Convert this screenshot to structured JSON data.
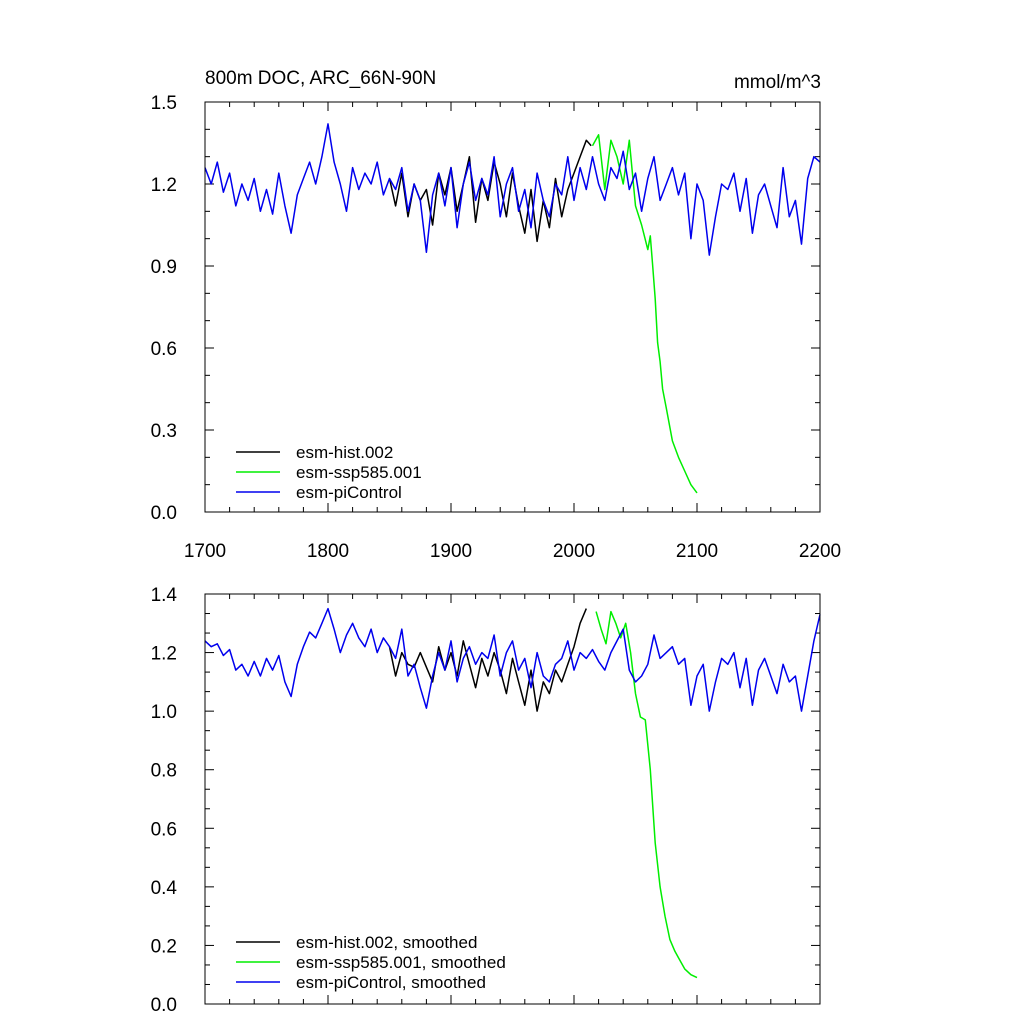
{
  "chart_data": [
    {
      "type": "line",
      "title": "800m DOC, ARC_66N-90N",
      "units": "mmol/m^3",
      "xlabel": "",
      "ylabel": "",
      "xlim": [
        1700,
        2200
      ],
      "ylim": [
        0.0,
        1.5
      ],
      "xticks": [
        1700,
        1800,
        1900,
        2000,
        2100,
        2200
      ],
      "xtick_labels": [
        "1700",
        "1800",
        "1900",
        "2000",
        "2100",
        "2200"
      ],
      "yticks": [
        0.0,
        0.3,
        0.6,
        0.9,
        1.2,
        1.5
      ],
      "ytick_labels": [
        "0.0",
        "0.3",
        "0.6",
        "0.9",
        "1.2",
        "1.5"
      ],
      "grid": false,
      "legend_position": "bottom-left",
      "series": [
        {
          "name": "esm-hist.002",
          "color": "#000000",
          "x": [
            1850,
            1855,
            1860,
            1865,
            1870,
            1875,
            1880,
            1885,
            1890,
            1895,
            1900,
            1905,
            1910,
            1915,
            1920,
            1925,
            1930,
            1935,
            1940,
            1945,
            1950,
            1955,
            1960,
            1965,
            1970,
            1975,
            1980,
            1985,
            1990,
            1995,
            2000,
            2005,
            2010,
            2014
          ],
          "y": [
            1.22,
            1.12,
            1.24,
            1.08,
            1.2,
            1.14,
            1.18,
            1.05,
            1.24,
            1.16,
            1.26,
            1.1,
            1.2,
            1.3,
            1.06,
            1.22,
            1.14,
            1.28,
            1.2,
            1.08,
            1.24,
            1.12,
            1.02,
            1.18,
            0.99,
            1.14,
            1.04,
            1.22,
            1.08,
            1.18,
            1.24,
            1.3,
            1.36,
            1.34
          ]
        },
        {
          "name": "esm-ssp585.001",
          "color": "#00ee00",
          "x": [
            2015,
            2020,
            2025,
            2030,
            2035,
            2040,
            2045,
            2050,
            2055,
            2060,
            2062,
            2064,
            2066,
            2068,
            2070,
            2072,
            2075,
            2080,
            2085,
            2090,
            2095,
            2100
          ],
          "y": [
            1.34,
            1.38,
            1.18,
            1.36,
            1.3,
            1.2,
            1.36,
            1.12,
            1.05,
            0.96,
            1.01,
            0.9,
            0.78,
            0.62,
            0.55,
            0.45,
            0.38,
            0.26,
            0.2,
            0.15,
            0.1,
            0.07
          ]
        },
        {
          "name": "esm-piControl",
          "color": "#0000ee",
          "x": [
            1700,
            1705,
            1710,
            1715,
            1720,
            1725,
            1730,
            1735,
            1740,
            1745,
            1750,
            1755,
            1760,
            1765,
            1770,
            1775,
            1780,
            1785,
            1790,
            1795,
            1800,
            1805,
            1810,
            1815,
            1820,
            1825,
            1830,
            1835,
            1840,
            1845,
            1850,
            1855,
            1860,
            1865,
            1870,
            1875,
            1880,
            1885,
            1890,
            1895,
            1900,
            1905,
            1910,
            1915,
            1920,
            1925,
            1930,
            1935,
            1940,
            1945,
            1950,
            1955,
            1960,
            1965,
            1970,
            1975,
            1980,
            1985,
            1990,
            1995,
            2000,
            2005,
            2010,
            2015,
            2020,
            2025,
            2030,
            2035,
            2040,
            2045,
            2050,
            2055,
            2060,
            2065,
            2070,
            2075,
            2080,
            2085,
            2090,
            2095,
            2100,
            2105,
            2110,
            2115,
            2120,
            2125,
            2130,
            2135,
            2140,
            2145,
            2150,
            2155,
            2160,
            2165,
            2170,
            2175,
            2180,
            2185,
            2190,
            2195,
            2200
          ],
          "y": [
            1.26,
            1.2,
            1.28,
            1.17,
            1.24,
            1.12,
            1.2,
            1.14,
            1.22,
            1.1,
            1.18,
            1.09,
            1.24,
            1.12,
            1.02,
            1.16,
            1.22,
            1.28,
            1.2,
            1.3,
            1.42,
            1.28,
            1.2,
            1.1,
            1.26,
            1.18,
            1.24,
            1.2,
            1.28,
            1.16,
            1.22,
            1.18,
            1.26,
            1.1,
            1.2,
            1.14,
            0.95,
            1.16,
            1.24,
            1.12,
            1.26,
            1.04,
            1.2,
            1.28,
            1.14,
            1.22,
            1.16,
            1.3,
            1.08,
            1.2,
            1.26,
            1.1,
            1.18,
            1.04,
            1.24,
            1.14,
            1.08,
            1.2,
            1.16,
            1.3,
            1.14,
            1.26,
            1.18,
            1.3,
            1.2,
            1.14,
            1.26,
            1.22,
            1.32,
            1.18,
            1.24,
            1.1,
            1.22,
            1.3,
            1.14,
            1.2,
            1.26,
            1.16,
            1.24,
            1.0,
            1.2,
            1.14,
            0.94,
            1.08,
            1.2,
            1.18,
            1.24,
            1.1,
            1.22,
            1.02,
            1.16,
            1.2,
            1.12,
            1.04,
            1.26,
            1.08,
            1.14,
            0.98,
            1.22,
            1.3,
            1.28
          ]
        }
      ]
    },
    {
      "type": "line",
      "title": "",
      "xlabel": "",
      "ylabel": "",
      "xlim": [
        1700,
        2200
      ],
      "ylim": [
        0.0,
        1.4
      ],
      "xticks": [
        1700,
        1800,
        1900,
        2000,
        2100,
        2200
      ],
      "yticks": [
        0.0,
        0.2,
        0.4,
        0.6,
        0.8,
        1.0,
        1.2,
        1.4
      ],
      "ytick_labels": [
        "0.0",
        "0.2",
        "0.4",
        "0.6",
        "0.8",
        "1.0",
        "1.2",
        "1.4"
      ],
      "grid": false,
      "legend_position": "bottom-left",
      "series": [
        {
          "name": "esm-hist.002, smoothed",
          "color": "#000000",
          "x": [
            1850,
            1855,
            1860,
            1865,
            1870,
            1875,
            1880,
            1885,
            1890,
            1895,
            1900,
            1905,
            1910,
            1915,
            1920,
            1925,
            1930,
            1935,
            1940,
            1945,
            1950,
            1955,
            1960,
            1965,
            1970,
            1975,
            1980,
            1985,
            1990,
            1995,
            2000,
            2005,
            2010
          ],
          "y": [
            1.22,
            1.12,
            1.2,
            1.16,
            1.15,
            1.2,
            1.15,
            1.1,
            1.22,
            1.14,
            1.2,
            1.12,
            1.24,
            1.16,
            1.08,
            1.18,
            1.12,
            1.2,
            1.14,
            1.06,
            1.18,
            1.1,
            1.02,
            1.14,
            1.0,
            1.1,
            1.06,
            1.14,
            1.1,
            1.16,
            1.22,
            1.3,
            1.35
          ]
        },
        {
          "name": "esm-ssp585.001, smoothed",
          "color": "#00ee00",
          "x": [
            2018,
            2022,
            2026,
            2030,
            2034,
            2038,
            2042,
            2046,
            2050,
            2054,
            2058,
            2062,
            2066,
            2070,
            2074,
            2078,
            2082,
            2086,
            2090,
            2095,
            2100
          ],
          "y": [
            1.34,
            1.28,
            1.23,
            1.34,
            1.3,
            1.25,
            1.3,
            1.2,
            1.06,
            0.98,
            0.97,
            0.8,
            0.55,
            0.4,
            0.3,
            0.22,
            0.18,
            0.15,
            0.12,
            0.1,
            0.09
          ]
        },
        {
          "name": "esm-piControl, smoothed",
          "color": "#0000ee",
          "x": [
            1700,
            1705,
            1710,
            1715,
            1720,
            1725,
            1730,
            1735,
            1740,
            1745,
            1750,
            1755,
            1760,
            1765,
            1770,
            1775,
            1780,
            1785,
            1790,
            1795,
            1800,
            1805,
            1810,
            1815,
            1820,
            1825,
            1830,
            1835,
            1840,
            1845,
            1850,
            1855,
            1860,
            1865,
            1870,
            1875,
            1880,
            1885,
            1890,
            1895,
            1900,
            1905,
            1910,
            1915,
            1920,
            1925,
            1930,
            1935,
            1940,
            1945,
            1950,
            1955,
            1960,
            1965,
            1970,
            1975,
            1980,
            1985,
            1990,
            1995,
            2000,
            2005,
            2010,
            2015,
            2020,
            2025,
            2030,
            2035,
            2040,
            2045,
            2050,
            2055,
            2060,
            2065,
            2070,
            2075,
            2080,
            2085,
            2090,
            2095,
            2100,
            2105,
            2110,
            2115,
            2120,
            2125,
            2130,
            2135,
            2140,
            2145,
            2150,
            2155,
            2160,
            2165,
            2170,
            2175,
            2180,
            2185,
            2190,
            2195,
            2200
          ],
          "y": [
            1.24,
            1.22,
            1.23,
            1.19,
            1.21,
            1.14,
            1.16,
            1.12,
            1.17,
            1.12,
            1.18,
            1.14,
            1.19,
            1.1,
            1.05,
            1.16,
            1.22,
            1.27,
            1.25,
            1.3,
            1.35,
            1.28,
            1.2,
            1.26,
            1.3,
            1.25,
            1.22,
            1.28,
            1.2,
            1.25,
            1.22,
            1.18,
            1.28,
            1.12,
            1.16,
            1.08,
            1.01,
            1.12,
            1.2,
            1.14,
            1.24,
            1.1,
            1.18,
            1.22,
            1.16,
            1.2,
            1.18,
            1.26,
            1.12,
            1.2,
            1.24,
            1.14,
            1.18,
            1.08,
            1.2,
            1.12,
            1.1,
            1.16,
            1.18,
            1.24,
            1.14,
            1.2,
            1.18,
            1.21,
            1.17,
            1.14,
            1.2,
            1.24,
            1.28,
            1.14,
            1.1,
            1.12,
            1.16,
            1.26,
            1.18,
            1.2,
            1.22,
            1.16,
            1.18,
            1.02,
            1.12,
            1.16,
            1.0,
            1.1,
            1.18,
            1.16,
            1.2,
            1.08,
            1.18,
            1.02,
            1.14,
            1.18,
            1.12,
            1.06,
            1.16,
            1.1,
            1.12,
            1.0,
            1.12,
            1.24,
            1.33
          ]
        }
      ]
    }
  ]
}
